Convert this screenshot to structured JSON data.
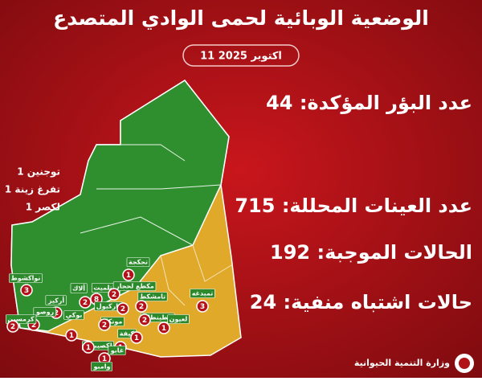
{
  "title": "الوضعية الوبائية لحمى الوادي المتصدع",
  "date": "11 اكتوبر 2025",
  "stats": [
    "عدد البؤر المؤكدة: 44",
    "عدد العينات المحللة: 715",
    "الحالات الموجبة: 192",
    "حالات اشتباه منفية: 24"
  ],
  "notes": [
    "توجنين 1",
    "تفرغ زينة 1",
    "لكصر 1"
  ],
  "markers": [
    {
      "label": "تجكجة",
      "count": 1
    },
    {
      "label": "تمبدغه",
      "count": 3
    },
    {
      "label": "نواكشوط",
      "count": 3
    },
    {
      "label": "أركيز",
      "count": 2
    },
    {
      "label": "روصو",
      "count": 2
    },
    {
      "label": "كرمسين",
      "count": 2
    },
    {
      "label": "بوتلميت",
      "count": 2
    },
    {
      "label": "ألاك",
      "count": 8
    },
    {
      "label": "مكطع لحجار",
      "count": 2
    },
    {
      "label": "باركيول",
      "count": 2
    },
    {
      "label": "تامشكط",
      "count": 2
    },
    {
      "label": "الطينطان",
      "count": 2
    },
    {
      "label": "لعيون",
      "count": 1
    },
    {
      "label": "بوكي",
      "count": 1
    },
    {
      "label": "مونكل",
      "count": 2
    },
    {
      "label": "كيفة",
      "count": 1
    },
    {
      "label": "لكصيبه 1",
      "count": 1
    },
    {
      "label": "غابو",
      "count": 1
    },
    {
      "label": "وامبو",
      "count": 1
    }
  ],
  "footer": "وزارة التنمية الحيوانية"
}
